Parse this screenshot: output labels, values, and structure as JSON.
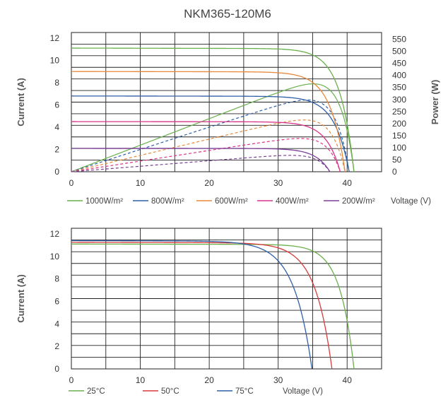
{
  "title": "NKM365-120M6",
  "chart_data": [
    {
      "type": "line",
      "title": "NKM365-120M6",
      "xlabel": "Voltage (V)",
      "ylabel": "Current (A)",
      "y2label": "Power (W)",
      "xlim": [
        0,
        45
      ],
      "ylim": [
        0,
        12.5
      ],
      "y2lim": [
        0,
        578
      ],
      "x_ticks": [
        "0",
        "10",
        "20",
        "30",
        "40"
      ],
      "y_ticks": [
        "0",
        "2",
        "4",
        "6",
        "8",
        "10",
        "12"
      ],
      "y2_ticks": [
        "0",
        "50",
        "100",
        "150",
        "200",
        "250",
        "300",
        "350",
        "400",
        "450",
        "500",
        "550"
      ],
      "grid": true,
      "legend_position": "bottom",
      "series": [
        {
          "name": "1000W/m²",
          "color": "#6ab04c",
          "isc": 11.1,
          "voc": 41.0,
          "vknee": 34.5,
          "pmax": 365
        },
        {
          "name": "800W/m²",
          "color": "#2e5fa8",
          "isc": 6.8,
          "voc": 40.3,
          "vknee": 33.5,
          "pmax": 298
        },
        {
          "name": "600W/m²",
          "color": "#e8883a",
          "isc": 9.0,
          "voc": 39.7,
          "vknee": 33.0,
          "pmax": 215
        },
        {
          "name": "400W/m²",
          "color": "#d9348b",
          "isc": 4.5,
          "voc": 39.0,
          "vknee": 32.5,
          "pmax": 138
        },
        {
          "name": "200W/m²",
          "color": "#7b3f98",
          "isc": 2.1,
          "voc": 37.5,
          "vknee": 31.0,
          "pmax": 68
        }
      ]
    },
    {
      "type": "line",
      "xlabel": "Voltage (V)",
      "ylabel": "Current (A)",
      "xlim": [
        0,
        45
      ],
      "ylim": [
        0,
        12.5
      ],
      "x_ticks": [
        "0",
        "10",
        "20",
        "30",
        "40"
      ],
      "y_ticks": [
        "0",
        "2",
        "4",
        "6",
        "8",
        "10",
        "12"
      ],
      "grid": true,
      "legend_position": "bottom",
      "series": [
        {
          "name": "25°C",
          "color": "#6ab04c",
          "isc": 11.1,
          "voc": 41.0,
          "vknee": 34.5
        },
        {
          "name": "50°C",
          "color": "#d93a3a",
          "isc": 11.25,
          "voc": 37.8,
          "vknee": 30.0
        },
        {
          "name": "75°C",
          "color": "#2e5fa8",
          "isc": 11.4,
          "voc": 34.9,
          "vknee": 26.5
        }
      ]
    }
  ]
}
